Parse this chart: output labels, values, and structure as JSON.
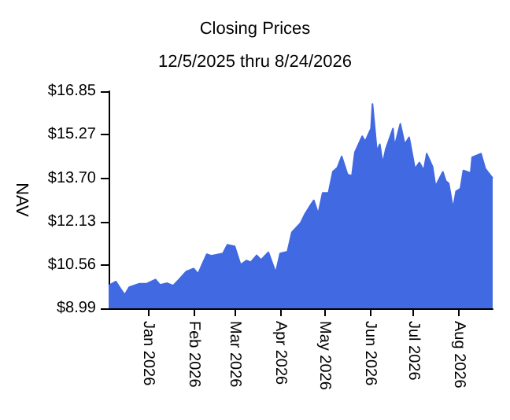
{
  "chart_data": {
    "type": "area",
    "title": "Closing Prices",
    "subtitle": "12/5/2025 thru 8/24/2026",
    "ylabel": "NAV",
    "x": [
      "2025-12-05",
      "2025-12-10",
      "2025-12-13",
      "2025-12-16",
      "2025-12-19",
      "2025-12-26",
      "2025-12-31",
      "2026-01-06",
      "2026-01-09",
      "2026-01-14",
      "2026-01-18",
      "2026-01-22",
      "2026-01-27",
      "2026-02-01",
      "2026-02-04",
      "2026-02-10",
      "2026-02-13",
      "2026-02-21",
      "2026-02-24",
      "2026-03-01",
      "2026-03-05",
      "2026-03-09",
      "2026-03-12",
      "2026-03-16",
      "2026-03-19",
      "2026-03-24",
      "2026-03-29",
      "2026-04-01",
      "2026-04-06",
      "2026-04-09",
      "2026-04-15",
      "2026-04-18",
      "2026-04-22",
      "2026-04-24",
      "2026-04-27",
      "2026-04-30",
      "2026-05-04",
      "2026-05-07",
      "2026-05-10",
      "2026-05-13",
      "2026-05-17",
      "2026-05-20",
      "2026-05-22",
      "2026-05-27",
      "2026-05-29",
      "2026-06-02",
      "2026-06-03",
      "2026-06-06",
      "2026-06-08",
      "2026-06-10",
      "2026-06-12",
      "2026-06-17",
      "2026-06-18",
      "2026-06-22",
      "2026-06-25",
      "2026-06-28",
      "2026-07-02",
      "2026-07-05",
      "2026-07-08",
      "2026-07-10",
      "2026-07-14",
      "2026-07-16",
      "2026-07-21",
      "2026-07-23",
      "2026-07-25",
      "2026-07-28",
      "2026-07-30",
      "2026-08-02",
      "2026-08-04",
      "2026-08-09",
      "2026-08-10",
      "2026-08-16",
      "2026-08-19",
      "2026-08-24"
    ],
    "series": [
      {
        "color": "#4169e1",
        "values": [
          9.81,
          9.96,
          9.71,
          9.48,
          9.75,
          9.88,
          9.88,
          10.03,
          9.84,
          9.9,
          9.81,
          10.03,
          10.32,
          10.43,
          10.24,
          10.95,
          10.89,
          10.98,
          11.29,
          11.23,
          10.57,
          10.72,
          10.66,
          10.91,
          10.74,
          11.02,
          10.28,
          10.98,
          11.04,
          11.74,
          12.08,
          12.41,
          12.75,
          12.9,
          12.41,
          13.17,
          13.17,
          13.94,
          14.08,
          14.49,
          13.83,
          13.79,
          14.64,
          15.22,
          15.03,
          15.5,
          16.39,
          14.68,
          14.93,
          14.23,
          14.74,
          15.5,
          14.84,
          15.67,
          14.93,
          15.18,
          14.04,
          14.27,
          13.98,
          14.59,
          14.11,
          13.41,
          13.93,
          13.6,
          13.51,
          12.6,
          13.22,
          13.32,
          13.98,
          13.89,
          14.46,
          14.59,
          14.04,
          13.7
        ]
      }
    ],
    "xlim": [
      "2025-12-05",
      "2026-08-24"
    ],
    "xticks": [
      {
        "value": "2026-01-01",
        "label": "Jan 2026"
      },
      {
        "value": "2026-02-01",
        "label": "Feb 2026"
      },
      {
        "value": "2026-03-01",
        "label": "Mar 2026"
      },
      {
        "value": "2026-04-01",
        "label": "Apr 2026"
      },
      {
        "value": "2026-05-01",
        "label": "May 2026"
      },
      {
        "value": "2026-06-01",
        "label": "Jun 2026"
      },
      {
        "value": "2026-07-01",
        "label": "Jul 2026"
      },
      {
        "value": "2026-08-01",
        "label": "Aug 2026"
      }
    ],
    "ylim": [
      8.99,
      16.85
    ],
    "yticks": [
      {
        "value": 8.99,
        "label": "$8.99"
      },
      {
        "value": 10.56,
        "label": "$10.56"
      },
      {
        "value": 12.13,
        "label": "$12.13"
      },
      {
        "value": 13.7,
        "label": "$13.70"
      },
      {
        "value": 15.27,
        "label": "$15.27"
      },
      {
        "value": 16.85,
        "label": "$16.85"
      }
    ],
    "marker": "none"
  }
}
